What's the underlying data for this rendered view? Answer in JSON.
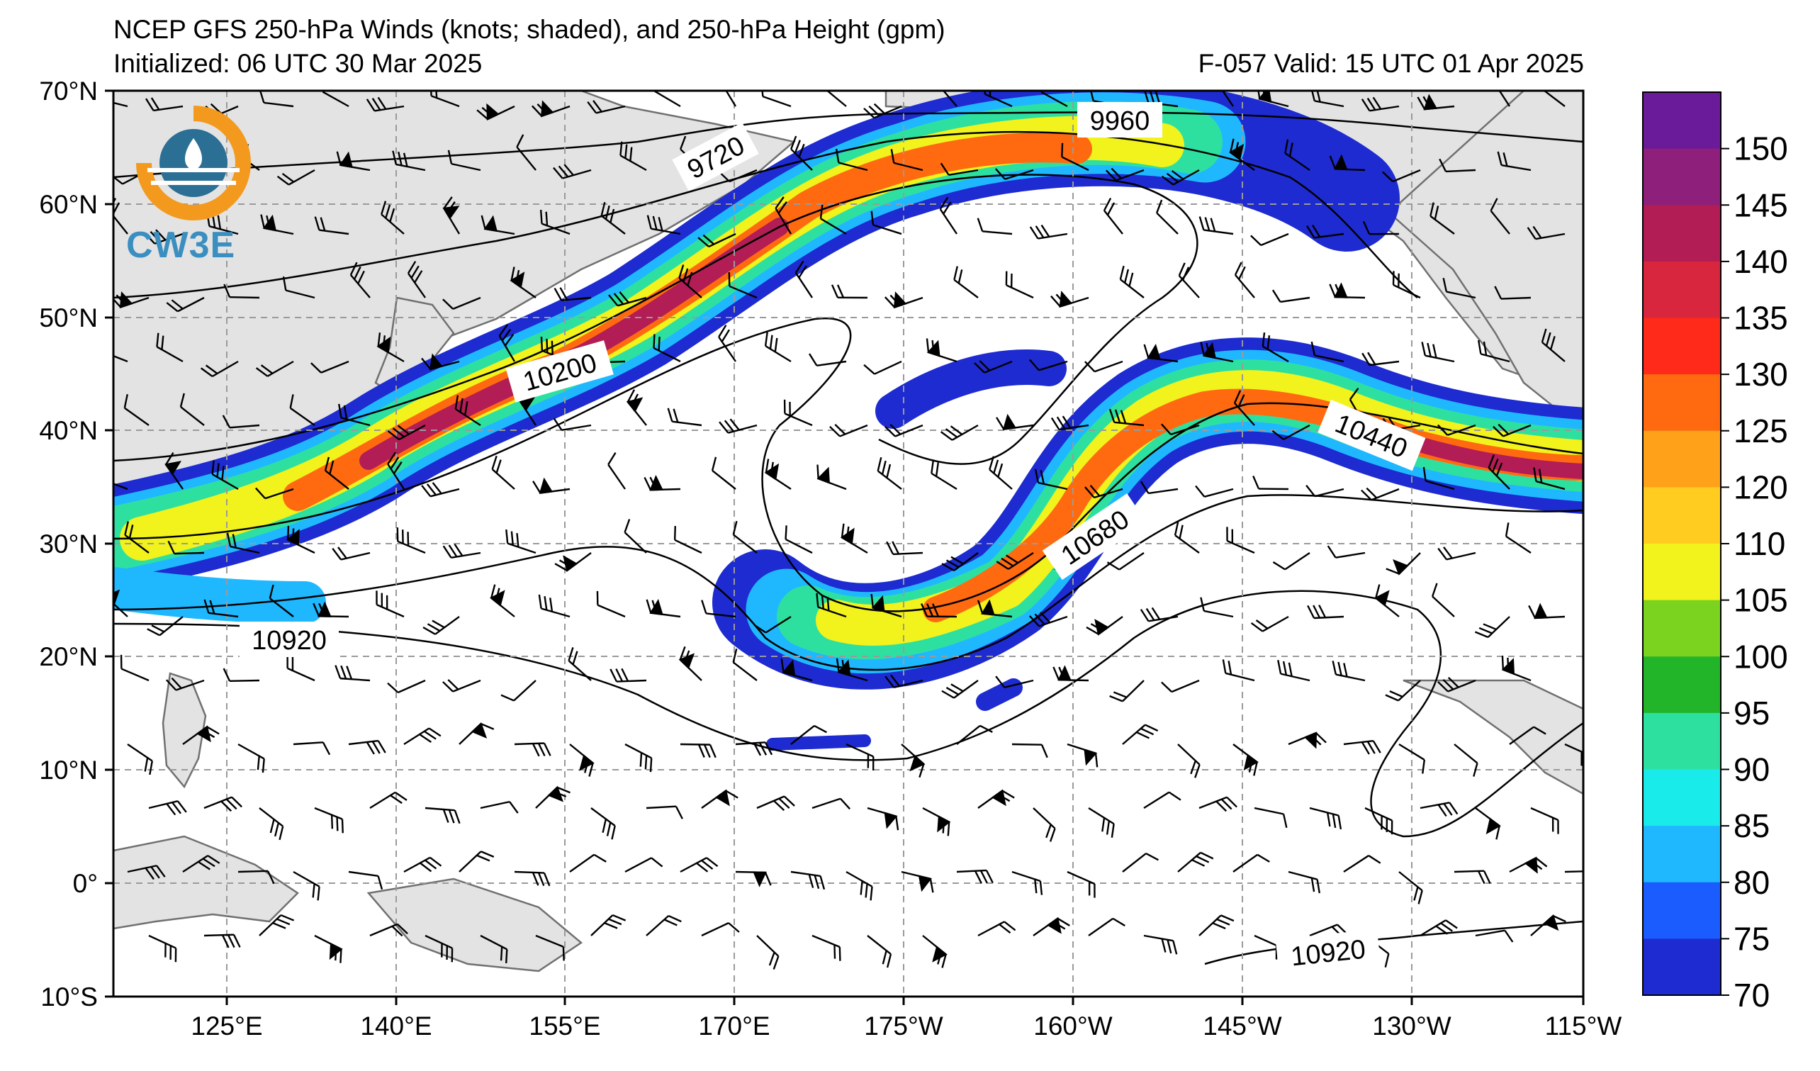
{
  "title": "NCEP GFS 250-hPa Winds (knots; shaded), and 250-hPa Height (gpm)",
  "initialized": "Initialized: 06 UTC 30 Mar 2025",
  "valid": "F-057  Valid: 15 UTC 01 Apr 2025",
  "logo_text": "CW3E",
  "lat_labels": [
    "70°N",
    "60°N",
    "50°N",
    "40°N",
    "30°N",
    "20°N",
    "10°N",
    "0°",
    "10°S"
  ],
  "lon_labels": [
    "125°E",
    "140°E",
    "155°E",
    "170°E",
    "175°W",
    "160°W",
    "145°W",
    "130°W",
    "115°W"
  ],
  "contour_labels": [
    "9720",
    "9960",
    "10200",
    "10440",
    "10680",
    "10920",
    "10920"
  ],
  "colorbar": {
    "ticks": [
      "150",
      "145",
      "140",
      "135",
      "130",
      "125",
      "120",
      "110",
      "105",
      "100",
      "95",
      "90",
      "85",
      "80",
      "75",
      "70"
    ],
    "colors": [
      "#6a1b9a",
      "#8e1f7a",
      "#b31d55",
      "#d7263d",
      "#ff2a1a",
      "#ff6a10",
      "#ffa21a",
      "#ffcc1f",
      "#f2f21c",
      "#7bd31f",
      "#22b52a",
      "#2ee0a0",
      "#19eaea",
      "#1fb8ff",
      "#1b5cff",
      "#1e2bd0"
    ]
  },
  "colors": {
    "land": "#e3e3e3",
    "coast": "#707070",
    "grid": "#9a9a9a",
    "contour": "#000000"
  }
}
